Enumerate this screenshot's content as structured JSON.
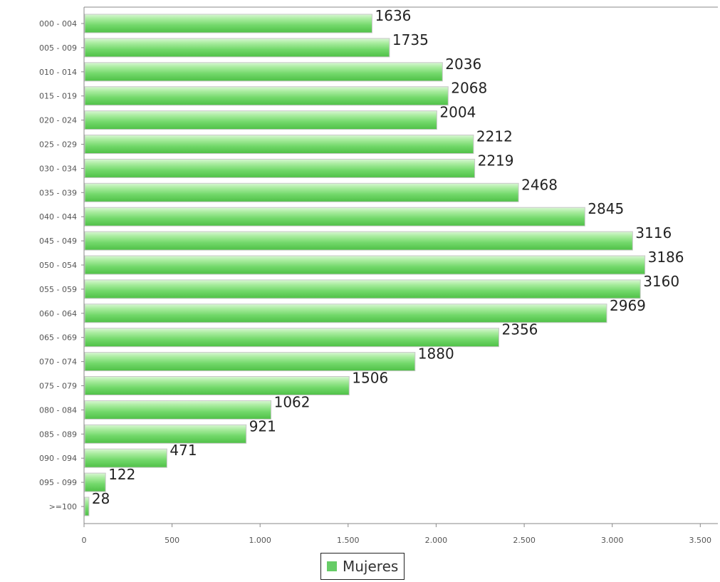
{
  "chart_data": {
    "type": "bar",
    "orientation": "horizontal",
    "categories": [
      "000 - 004",
      "005 - 009",
      "010 - 014",
      "015 - 019",
      "020 - 024",
      "025 - 029",
      "030 - 034",
      "035 - 039",
      "040 - 044",
      "045 - 049",
      "050 - 054",
      "055 - 059",
      "060 - 064",
      "065 - 069",
      "070 - 074",
      "075 - 079",
      "080 - 084",
      "085 - 089",
      "090 - 094",
      "095 - 099",
      ">=100"
    ],
    "series": [
      {
        "name": "Mujeres",
        "values": [
          1636,
          1735,
          2036,
          2068,
          2004,
          2212,
          2219,
          2468,
          2845,
          3116,
          3186,
          3160,
          2969,
          2356,
          1880,
          1506,
          1062,
          921,
          471,
          122,
          28
        ],
        "color": "#66cc66"
      }
    ],
    "value_labels": [
      "1636",
      "1735",
      "2036",
      "2068",
      "2004",
      "2212",
      "2219",
      "2468",
      "2845",
      "3116",
      "3186",
      "3160",
      "2969",
      "2356",
      "1880",
      "1506",
      "1062",
      "921",
      "471",
      "122",
      "28"
    ],
    "x_ticks": [
      0,
      500,
      1000,
      1500,
      2000,
      2500,
      3000,
      3500
    ],
    "x_tick_labels": [
      "0",
      "500",
      "1.000",
      "1.500",
      "2.000",
      "2.500",
      "3.000",
      "3.500"
    ],
    "xlim": [
      0,
      3600
    ],
    "legend_position": "bottom",
    "grid": false
  },
  "legend": {
    "label": "Mujeres"
  }
}
